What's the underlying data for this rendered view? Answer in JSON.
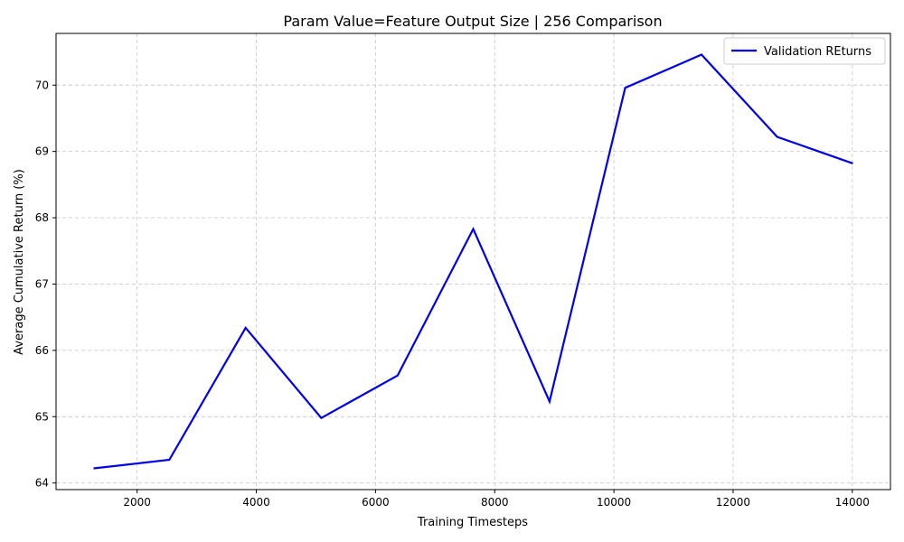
{
  "chart_data": {
    "type": "line",
    "title": "Param Value=Feature Output Size | 256 Comparison",
    "xlabel": "Training Timesteps",
    "ylabel": "Average Cumulative Return (%)",
    "xlim": [
      640,
      14640
    ],
    "ylim": [
      63.9,
      70.78
    ],
    "xticks": [
      2000,
      4000,
      6000,
      8000,
      10000,
      12000,
      14000
    ],
    "yticks": [
      64,
      65,
      66,
      67,
      68,
      69,
      70
    ],
    "grid": true,
    "legend_position": "top-right",
    "series": [
      {
        "name": "Validation REturns",
        "color": "#0000ee",
        "x": [
          1270,
          2540,
          3820,
          5090,
          6370,
          7640,
          8920,
          10190,
          11470,
          12740,
          14010
        ],
        "y": [
          64.22,
          64.35,
          66.34,
          64.98,
          65.62,
          67.83,
          65.23,
          69.96,
          70.46,
          69.22,
          68.82
        ]
      }
    ]
  }
}
